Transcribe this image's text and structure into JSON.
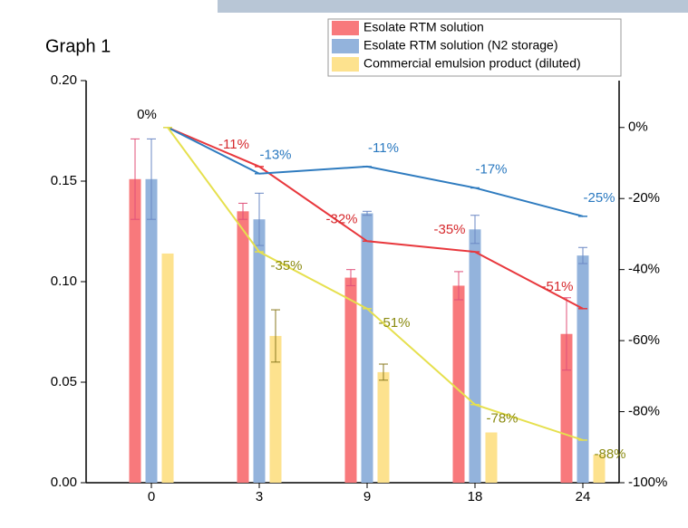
{
  "chart_data": {
    "type": "bar_line",
    "title": "Graph 1",
    "categories": [
      "0",
      "3",
      "9",
      "18",
      "24"
    ],
    "ylim": [
      0,
      0.2
    ],
    "yticks": [
      {
        "value": 0,
        "label": "0.00"
      },
      {
        "value": 0.05,
        "label": "0.05"
      },
      {
        "value": 0.1,
        "label": "0.10"
      },
      {
        "value": 0.15,
        "label": "0.15"
      },
      {
        "value": 0.2,
        "label": "0.20"
      }
    ],
    "y2lim": [
      -100,
      13.2
    ],
    "y2ticks": [
      {
        "value": 0,
        "label": "0%"
      },
      {
        "value": -20,
        "label": "-20%"
      },
      {
        "value": -40,
        "label": "-40%"
      },
      {
        "value": -60,
        "label": "-60%"
      },
      {
        "value": -80,
        "label": "-80%"
      },
      {
        "value": -100,
        "label": "-100%"
      }
    ],
    "series": [
      {
        "name": "Esolate RTM solution",
        "color": "#f8797c",
        "values": [
          0.151,
          0.135,
          0.102,
          0.098,
          0.074
        ],
        "errors": [
          0.02,
          0.004,
          0.004,
          0.007,
          0.018
        ]
      },
      {
        "name": "Esolate RTM solution (N2 storage)",
        "color": "#93b3dc",
        "values": [
          0.151,
          0.131,
          0.134,
          0.126,
          0.113
        ],
        "errors": [
          0.02,
          0.013,
          0.001,
          0.007,
          0.004
        ]
      },
      {
        "name": "Commercial emulsion product (diluted)",
        "color": "#fde28e",
        "values": [
          0.114,
          0.073,
          0.055,
          0.025,
          0.014
        ],
        "errors": [
          0,
          0.013,
          0.004,
          0,
          0
        ]
      },
      {
        "axis": "y2",
        "color": "#e8383d",
        "label_color": "#d62a2e",
        "values": [
          0,
          -11,
          -32,
          -35,
          -51
        ],
        "value_labels": [
          null,
          "-11%",
          "-32%",
          "-35%",
          "-51%"
        ]
      },
      {
        "axis": "y2",
        "color": "#2e7bbf",
        "label_color": "#2a79c0",
        "values": [
          0,
          -13,
          -11,
          -17,
          -25
        ],
        "value_labels": [
          null,
          "-13%",
          "-11%",
          "-17%",
          "-25%"
        ]
      },
      {
        "axis": "y2",
        "color": "#e6e04e",
        "label_color": "#8a8a10",
        "values": [
          0,
          -35,
          -51,
          -78,
          -88
        ],
        "value_labels": [
          null,
          "-35%",
          "-51%",
          "-78%",
          "-88%"
        ]
      }
    ],
    "annotations": [
      "0%"
    ]
  }
}
